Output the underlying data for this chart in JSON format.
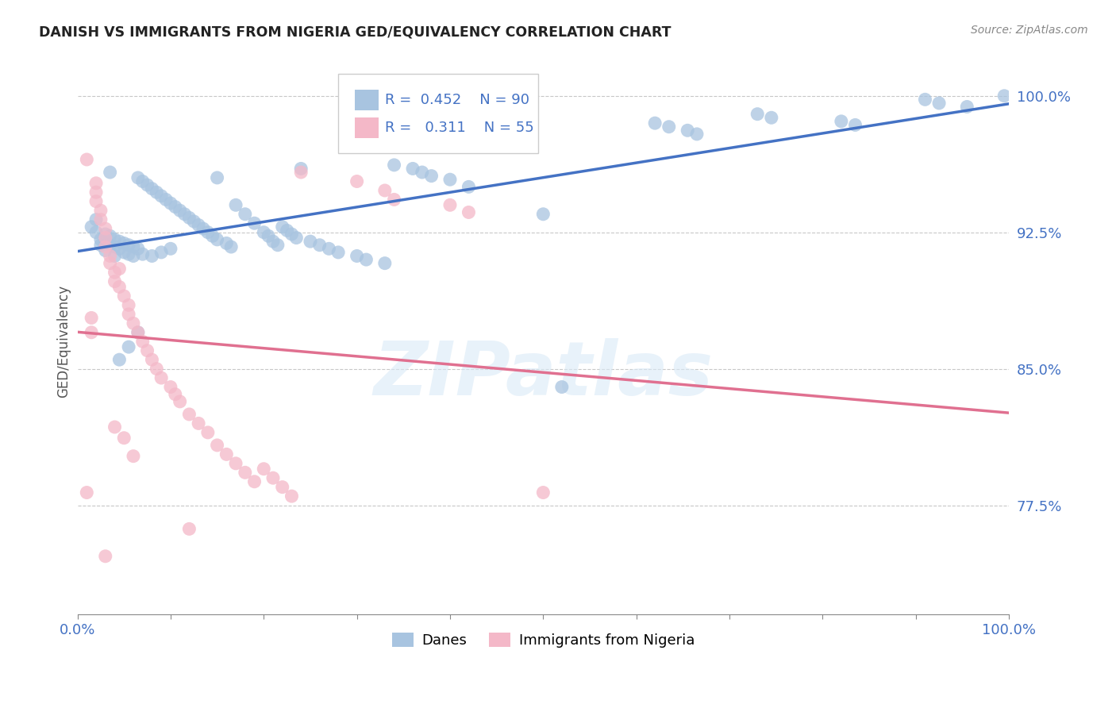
{
  "title": "DANISH VS IMMIGRANTS FROM NIGERIA GED/EQUIVALENCY CORRELATION CHART",
  "source": "Source: ZipAtlas.com",
  "ylabel": "GED/Equivalency",
  "xlim": [
    0.0,
    1.0
  ],
  "ylim": [
    0.715,
    1.015
  ],
  "yticks": [
    0.775,
    0.85,
    0.925,
    1.0
  ],
  "ytick_labels": [
    "77.5%",
    "85.0%",
    "92.5%",
    "100.0%"
  ],
  "xticks": [
    0.0,
    0.1,
    0.2,
    0.3,
    0.4,
    0.5,
    0.6,
    0.7,
    0.8,
    0.9,
    1.0
  ],
  "xtick_labels": [
    "0.0%",
    "",
    "",
    "",
    "",
    "",
    "",
    "",
    "",
    "",
    "100.0%"
  ],
  "danes_color": "#a8c4e0",
  "nigeria_color": "#f4b8c8",
  "danes_line_color": "#4472c4",
  "nigeria_line_color": "#e07090",
  "danes_R": 0.452,
  "danes_N": 90,
  "nigeria_R": 0.311,
  "nigeria_N": 55,
  "danes_scatter_x": [
    0.015,
    0.02,
    0.02,
    0.025,
    0.025,
    0.03,
    0.03,
    0.03,
    0.035,
    0.035,
    0.04,
    0.04,
    0.04,
    0.045,
    0.045,
    0.05,
    0.05,
    0.055,
    0.055,
    0.06,
    0.06,
    0.065,
    0.065,
    0.07,
    0.07,
    0.075,
    0.08,
    0.08,
    0.085,
    0.09,
    0.09,
    0.095,
    0.1,
    0.1,
    0.105,
    0.11,
    0.115,
    0.12,
    0.125,
    0.13,
    0.135,
    0.14,
    0.145,
    0.15,
    0.15,
    0.16,
    0.165,
    0.17,
    0.18,
    0.19,
    0.2,
    0.205,
    0.21,
    0.215,
    0.22,
    0.225,
    0.23,
    0.235,
    0.24,
    0.25,
    0.26,
    0.27,
    0.28,
    0.3,
    0.31,
    0.33,
    0.34,
    0.36,
    0.37,
    0.38,
    0.4,
    0.42,
    0.5,
    0.52,
    0.62,
    0.635,
    0.655,
    0.665,
    0.73,
    0.745,
    0.82,
    0.835,
    0.91,
    0.925,
    0.955,
    0.995,
    0.065,
    0.055,
    0.045,
    0.035
  ],
  "danes_scatter_y": [
    0.928,
    0.932,
    0.925,
    0.921,
    0.918,
    0.924,
    0.92,
    0.915,
    0.923,
    0.918,
    0.921,
    0.917,
    0.912,
    0.92,
    0.916,
    0.919,
    0.914,
    0.918,
    0.913,
    0.917,
    0.912,
    0.955,
    0.916,
    0.953,
    0.913,
    0.951,
    0.949,
    0.912,
    0.947,
    0.945,
    0.914,
    0.943,
    0.941,
    0.916,
    0.939,
    0.937,
    0.935,
    0.933,
    0.931,
    0.929,
    0.927,
    0.925,
    0.923,
    0.955,
    0.921,
    0.919,
    0.917,
    0.94,
    0.935,
    0.93,
    0.925,
    0.923,
    0.92,
    0.918,
    0.928,
    0.926,
    0.924,
    0.922,
    0.96,
    0.92,
    0.918,
    0.916,
    0.914,
    0.912,
    0.91,
    0.908,
    0.962,
    0.96,
    0.958,
    0.956,
    0.954,
    0.95,
    0.935,
    0.84,
    0.985,
    0.983,
    0.981,
    0.979,
    0.99,
    0.988,
    0.986,
    0.984,
    0.998,
    0.996,
    0.994,
    1.0,
    0.87,
    0.862,
    0.855,
    0.958
  ],
  "nigeria_scatter_x": [
    0.01,
    0.01,
    0.015,
    0.015,
    0.02,
    0.02,
    0.02,
    0.025,
    0.025,
    0.03,
    0.03,
    0.03,
    0.035,
    0.035,
    0.04,
    0.04,
    0.045,
    0.045,
    0.05,
    0.055,
    0.055,
    0.06,
    0.065,
    0.07,
    0.075,
    0.08,
    0.085,
    0.09,
    0.1,
    0.105,
    0.11,
    0.12,
    0.13,
    0.14,
    0.15,
    0.16,
    0.17,
    0.18,
    0.19,
    0.2,
    0.21,
    0.22,
    0.23,
    0.24,
    0.3,
    0.33,
    0.34,
    0.4,
    0.42,
    0.5,
    0.03,
    0.04,
    0.05,
    0.06,
    0.12
  ],
  "nigeria_scatter_y": [
    0.965,
    0.782,
    0.878,
    0.87,
    0.952,
    0.947,
    0.942,
    0.937,
    0.932,
    0.927,
    0.922,
    0.917,
    0.912,
    0.908,
    0.903,
    0.898,
    0.905,
    0.895,
    0.89,
    0.885,
    0.88,
    0.875,
    0.87,
    0.865,
    0.86,
    0.855,
    0.85,
    0.845,
    0.84,
    0.836,
    0.832,
    0.825,
    0.82,
    0.815,
    0.808,
    0.803,
    0.798,
    0.793,
    0.788,
    0.795,
    0.79,
    0.785,
    0.78,
    0.958,
    0.953,
    0.948,
    0.943,
    0.94,
    0.936,
    0.782,
    0.747,
    0.818,
    0.812,
    0.802,
    0.762
  ],
  "watermark_text": "ZIPatlas",
  "legend_box_text1": "R =  0.452    N = 90",
  "legend_box_text2": "R =   0.311    N = 55"
}
